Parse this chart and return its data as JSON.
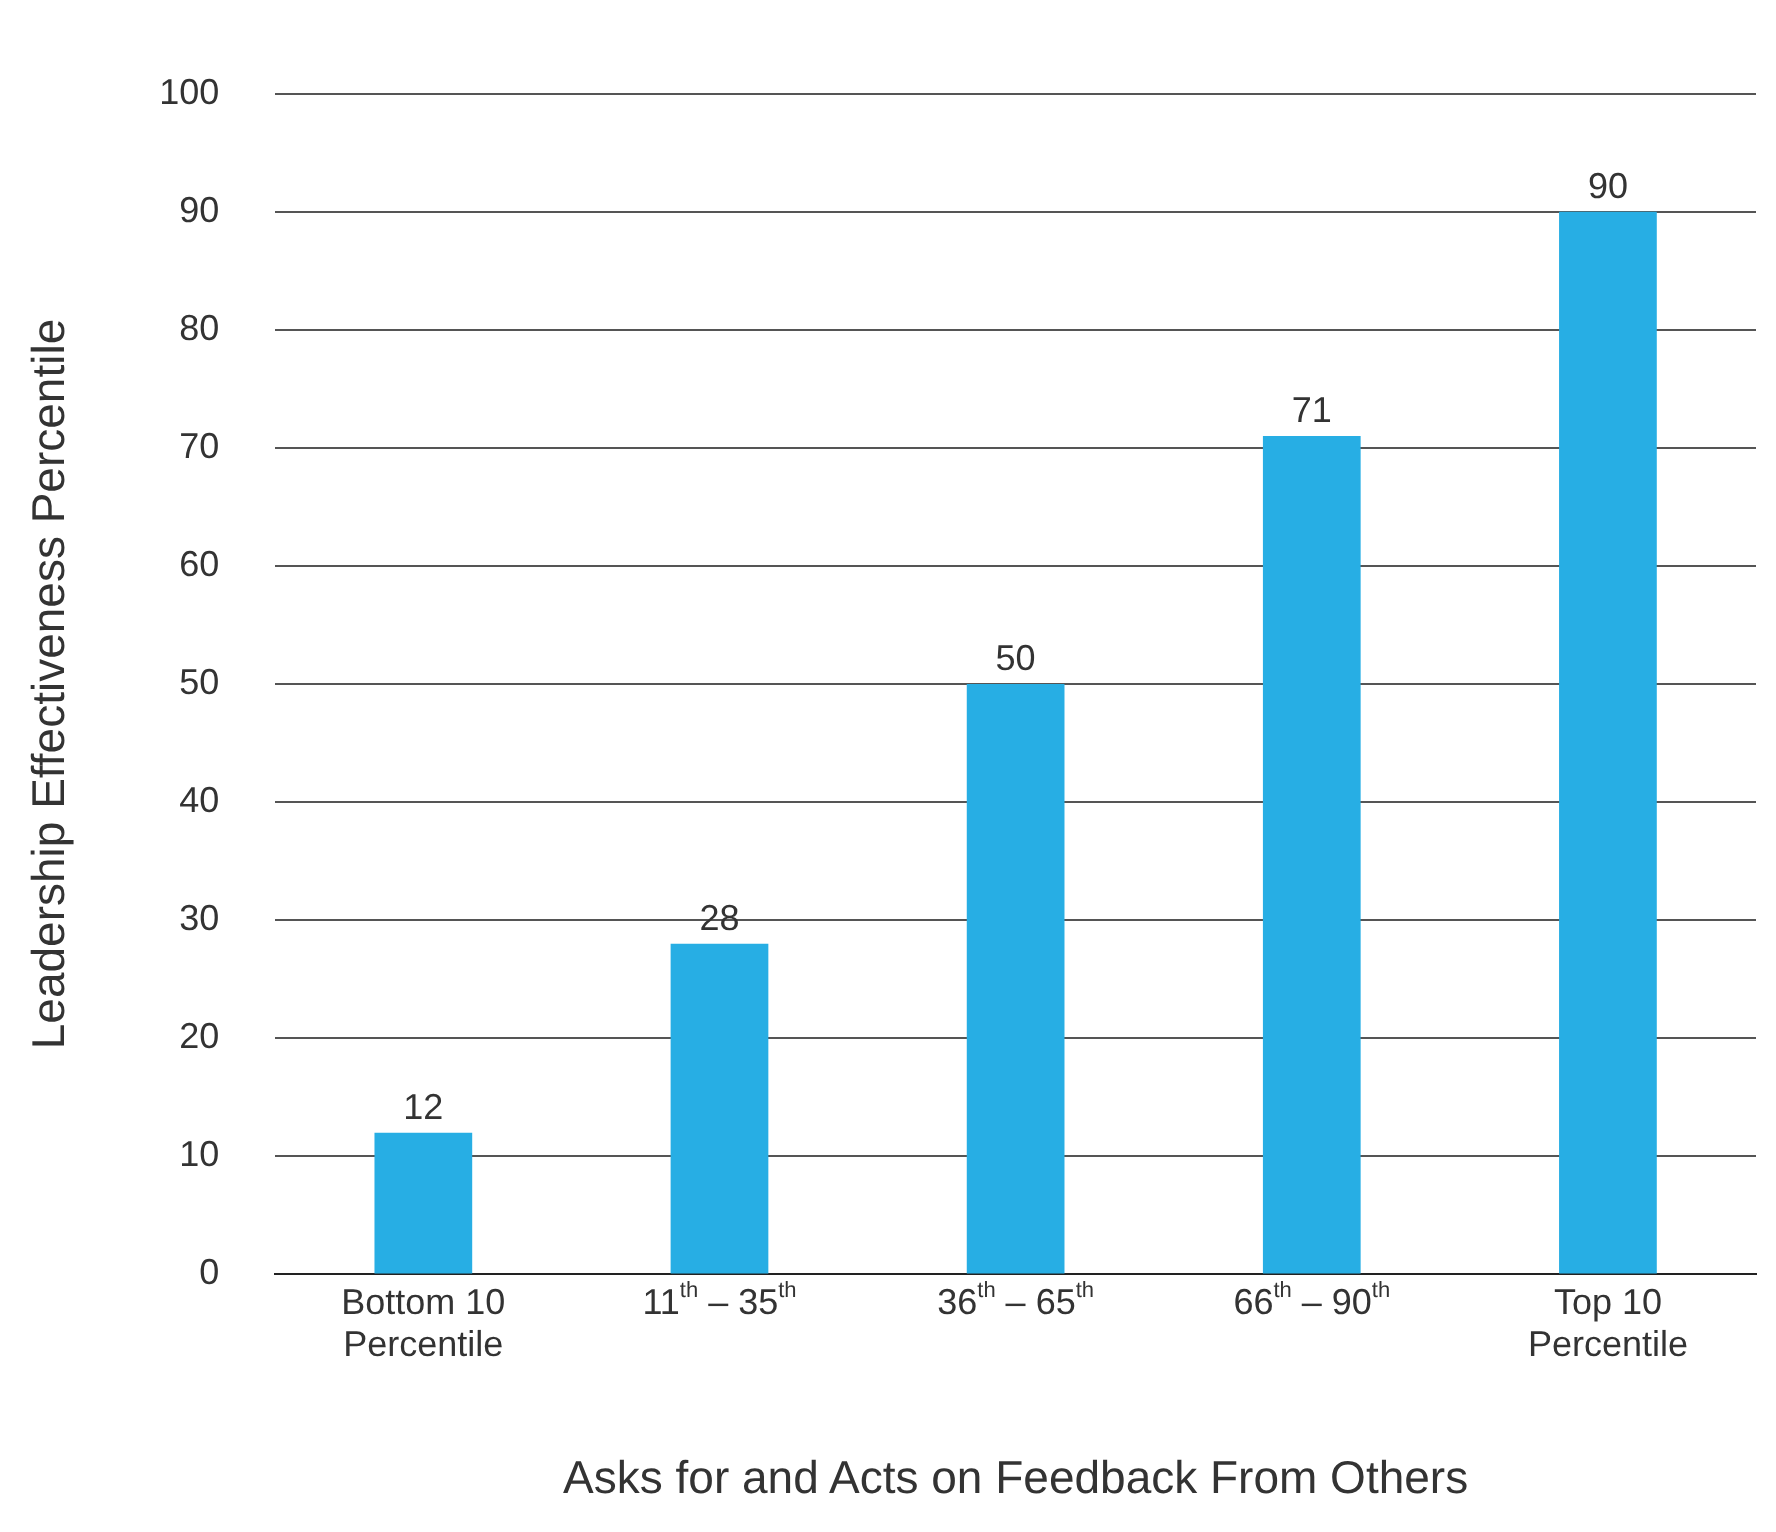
{
  "chart_data": {
    "type": "bar",
    "xlabel": "Asks for and Acts on Feedback From Others",
    "ylabel": "Leadership Effectiveness Percentile",
    "categories": [
      "Bottom 10 Percentile",
      "11$^{th}$ – 35$^{th}$",
      "36$^{th}$ – 65$^{th}$",
      "66$^{th}$ – 90$^{th}$",
      "Top 10 Percentile"
    ],
    "values": [
      12,
      28,
      50,
      71,
      90
    ],
    "color": "#27aee4",
    "data_labels": true,
    "ylim": [
      0,
      100
    ],
    "yticks": [
      0,
      10,
      20,
      30,
      40,
      50,
      60,
      70,
      80,
      90,
      100
    ],
    "grid": "y",
    "legend": false
  }
}
